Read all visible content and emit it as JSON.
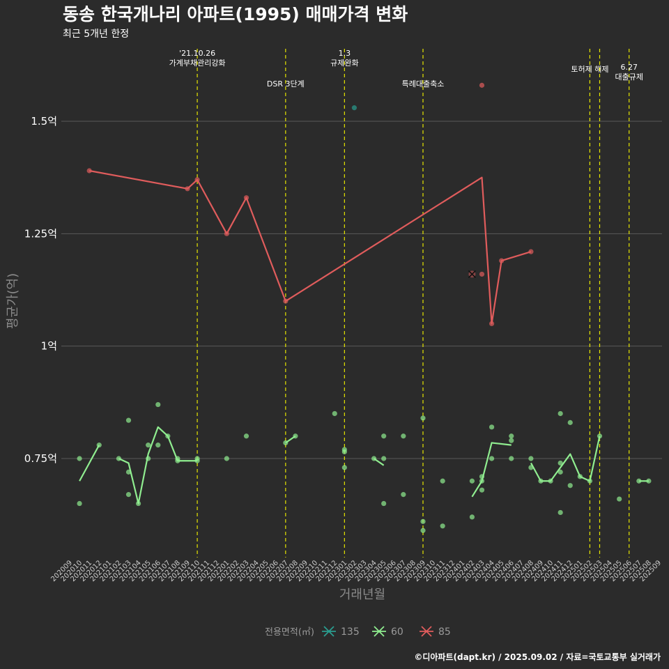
{
  "chart_data": {
    "type": "line",
    "title": "동송 한국개나리 아파트(1995) 매매가격 변화",
    "subtitle": "최근 5개년 한정",
    "xlabel": "거래년월",
    "ylabel": "평균가(억)",
    "ylim": [
      0.55,
      1.6
    ],
    "yticks": [
      {
        "value": 0.75,
        "label": "0.75억"
      },
      {
        "value": 1.0,
        "label": "1억"
      },
      {
        "value": 1.25,
        "label": "1.25억"
      },
      {
        "value": 1.5,
        "label": "1.5억"
      }
    ],
    "grid": true,
    "x_categories": [
      "202009",
      "202010",
      "202011",
      "202012",
      "202101",
      "202102",
      "202103",
      "202104",
      "202105",
      "202106",
      "202107",
      "202108",
      "202109",
      "202110",
      "202111",
      "202112",
      "202201",
      "202202",
      "202203",
      "202204",
      "202205",
      "202206",
      "202207",
      "202208",
      "202209",
      "202210",
      "202211",
      "202212",
      "202301",
      "202302",
      "202303",
      "202304",
      "202305",
      "202306",
      "202307",
      "202308",
      "202309",
      "202310",
      "202311",
      "202312",
      "202401",
      "202402",
      "202403",
      "202404",
      "202405",
      "202406",
      "202407",
      "202408",
      "202409",
      "202410",
      "202411",
      "202412",
      "202501",
      "202502",
      "202503",
      "202504",
      "202505",
      "202506",
      "202507",
      "202508",
      "202509"
    ],
    "events": [
      {
        "x": "202110",
        "label": "'21.10.26\n가계부채관리강화",
        "level": 0
      },
      {
        "x": "202207",
        "label": "DSR 3단계",
        "level": 2
      },
      {
        "x": "202301",
        "label": "1.3\n규제완화",
        "level": 0
      },
      {
        "x": "202309",
        "label": "특례대출축소",
        "level": 2
      },
      {
        "x": "202502",
        "label": "토허제 해제",
        "level": 1
      },
      {
        "x": "202503",
        "label": "",
        "level": 1
      },
      {
        "x": "202506",
        "label": "6.27\n대출규제",
        "level": 1.5
      }
    ],
    "series": [
      {
        "name": "135",
        "color": "#2a9d8f",
        "line": [],
        "points": [
          {
            "x": "202302",
            "y": 1.53
          }
        ]
      },
      {
        "name": "60",
        "color": "#90ee90",
        "line": [
          {
            "x": "202010",
            "y": 0.7
          },
          {
            "x": "202012",
            "y": 0.78
          },
          {
            "x": null
          },
          {
            "x": "202102",
            "y": 0.75
          },
          {
            "x": "202103",
            "y": 0.74
          },
          {
            "x": "202104",
            "y": 0.65
          },
          {
            "x": "202105",
            "y": 0.76
          },
          {
            "x": "202106",
            "y": 0.82
          },
          {
            "x": "202107",
            "y": 0.8
          },
          {
            "x": "202108",
            "y": 0.745
          },
          {
            "x": "202109",
            "y": 0.745
          },
          {
            "x": "202110",
            "y": 0.745
          },
          {
            "x": null
          },
          {
            "x": "202207",
            "y": 0.785
          },
          {
            "x": "202208",
            "y": 0.8
          },
          {
            "x": null
          },
          {
            "x": "202304",
            "y": 0.75
          },
          {
            "x": "202305",
            "y": 0.735
          },
          {
            "x": null
          },
          {
            "x": "202402",
            "y": 0.665
          },
          {
            "x": "202403",
            "y": 0.7
          },
          {
            "x": "202404",
            "y": 0.785
          },
          {
            "x": "202406",
            "y": 0.78
          },
          {
            "x": null
          },
          {
            "x": "202408",
            "y": 0.74
          },
          {
            "x": "202409",
            "y": 0.7
          },
          {
            "x": "202410",
            "y": 0.7
          },
          {
            "x": "202411",
            "y": 0.73
          },
          {
            "x": "202412",
            "y": 0.76
          },
          {
            "x": "202501",
            "y": 0.71
          },
          {
            "x": "202502",
            "y": 0.7
          },
          {
            "x": "202503",
            "y": 0.8
          },
          {
            "x": null
          },
          {
            "x": "202507",
            "y": 0.7
          },
          {
            "x": "202508",
            "y": 0.7
          }
        ],
        "points": [
          {
            "x": "202010",
            "y": 0.75
          },
          {
            "x": "202010",
            "y": 0.65
          },
          {
            "x": "202012",
            "y": 0.78
          },
          {
            "x": "202102",
            "y": 0.75
          },
          {
            "x": "202103",
            "y": 0.835
          },
          {
            "x": "202103",
            "y": 0.72
          },
          {
            "x": "202103",
            "y": 0.67
          },
          {
            "x": "202104",
            "y": 0.65
          },
          {
            "x": "202105",
            "y": 0.78
          },
          {
            "x": "202105",
            "y": 0.75
          },
          {
            "x": "202106",
            "y": 0.87
          },
          {
            "x": "202106",
            "y": 0.78
          },
          {
            "x": "202107",
            "y": 0.8
          },
          {
            "x": "202108",
            "y": 0.75
          },
          {
            "x": "202108",
            "y": 0.745
          },
          {
            "x": "202110",
            "y": 0.75
          },
          {
            "x": "202110",
            "y": 0.745
          },
          {
            "x": "202201",
            "y": 0.75
          },
          {
            "x": "202203",
            "y": 0.8
          },
          {
            "x": "202207",
            "y": 0.785
          },
          {
            "x": "202208",
            "y": 0.8
          },
          {
            "x": "202212",
            "y": 0.85
          },
          {
            "x": "202301",
            "y": 0.77
          },
          {
            "x": "202301",
            "y": 0.765
          },
          {
            "x": "202301",
            "y": 0.73
          },
          {
            "x": "202304",
            "y": 0.75
          },
          {
            "x": "202305",
            "y": 0.8
          },
          {
            "x": "202305",
            "y": 0.75
          },
          {
            "x": "202305",
            "y": 0.65
          },
          {
            "x": "202307",
            "y": 0.8
          },
          {
            "x": "202307",
            "y": 0.67
          },
          {
            "x": "202309",
            "y": 0.84
          },
          {
            "x": "202309",
            "y": 0.61
          },
          {
            "x": "202309",
            "y": 0.59
          },
          {
            "x": "202311",
            "y": 0.7
          },
          {
            "x": "202311",
            "y": 0.6
          },
          {
            "x": "202402",
            "y": 0.7
          },
          {
            "x": "202402",
            "y": 0.62
          },
          {
            "x": "202403",
            "y": 0.71
          },
          {
            "x": "202403",
            "y": 0.7
          },
          {
            "x": "202403",
            "y": 0.68
          },
          {
            "x": "202404",
            "y": 0.82
          },
          {
            "x": "202404",
            "y": 0.75
          },
          {
            "x": "202406",
            "y": 0.8
          },
          {
            "x": "202406",
            "y": 0.79
          },
          {
            "x": "202406",
            "y": 0.75
          },
          {
            "x": "202408",
            "y": 0.75
          },
          {
            "x": "202408",
            "y": 0.73
          },
          {
            "x": "202409",
            "y": 0.7
          },
          {
            "x": "202410",
            "y": 0.7
          },
          {
            "x": "202411",
            "y": 0.85
          },
          {
            "x": "202411",
            "y": 0.74
          },
          {
            "x": "202411",
            "y": 0.72
          },
          {
            "x": "202411",
            "y": 0.63
          },
          {
            "x": "202412",
            "y": 0.83
          },
          {
            "x": "202412",
            "y": 0.69
          },
          {
            "x": "202501",
            "y": 0.71
          },
          {
            "x": "202502",
            "y": 0.7
          },
          {
            "x": "202503",
            "y": 0.8
          },
          {
            "x": "202505",
            "y": 0.66
          },
          {
            "x": "202507",
            "y": 0.7
          },
          {
            "x": "202508",
            "y": 0.7
          }
        ]
      },
      {
        "name": "85",
        "color": "#e05c5c",
        "line": [
          {
            "x": "202011",
            "y": 1.39
          },
          {
            "x": "202109",
            "y": 1.35
          },
          {
            "x": "202110",
            "y": 1.37
          },
          {
            "x": "202201",
            "y": 1.25
          },
          {
            "x": "202203",
            "y": 1.33
          },
          {
            "x": "202207",
            "y": 1.1
          },
          {
            "x": "202403",
            "y": 1.375
          },
          {
            "x": "202404",
            "y": 1.05
          },
          {
            "x": "202405",
            "y": 1.19
          },
          {
            "x": "202408",
            "y": 1.21
          }
        ],
        "points": [
          {
            "x": "202011",
            "y": 1.39
          },
          {
            "x": "202109",
            "y": 1.35
          },
          {
            "x": "202110",
            "y": 1.37
          },
          {
            "x": "202201",
            "y": 1.25
          },
          {
            "x": "202203",
            "y": 1.33
          },
          {
            "x": "202207",
            "y": 1.1
          },
          {
            "x": "202403",
            "y": 1.58
          },
          {
            "x": "202403",
            "y": 1.16
          },
          {
            "x": "202404",
            "y": 1.05
          },
          {
            "x": "202405",
            "y": 1.19
          },
          {
            "x": "202408",
            "y": 1.21
          }
        ],
        "cross_points": [
          {
            "x": "202402",
            "y": 1.16
          }
        ]
      }
    ],
    "legend": {
      "title": "전용면적(㎡)",
      "position": "bottom",
      "items": [
        "135",
        "60",
        "85"
      ]
    },
    "caption": "©디아파트(dapt.kr) / 2025.09.02 / 자료=국토교통부 실거래가"
  }
}
